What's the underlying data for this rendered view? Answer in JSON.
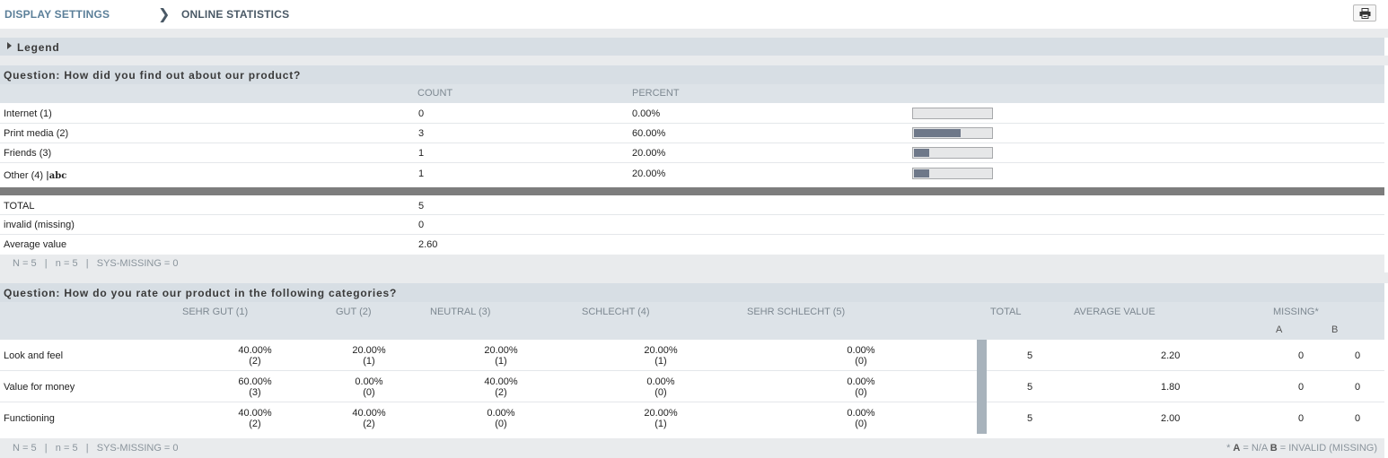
{
  "breadcrumb": {
    "display_settings": "DISPLAY SETTINGS",
    "separator": "❯",
    "current": "ONLINE STATISTICS"
  },
  "print_button": {
    "icon": "printer-icon"
  },
  "legend": {
    "label": "Legend",
    "icon": "triangle-right-icon"
  },
  "q1": {
    "title": "Question: How did you find out about our product?",
    "headers": {
      "count": "COUNT",
      "percent": "PERCENT"
    },
    "rows": [
      {
        "label": "Internet (1)",
        "count": "0",
        "percent": "0.00%",
        "fraction": 0.0
      },
      {
        "label": "Print media (2)",
        "count": "3",
        "percent": "60.00%",
        "fraction": 0.6
      },
      {
        "label": "Friends (3)",
        "count": "1",
        "percent": "20.00%",
        "fraction": 0.2
      },
      {
        "label": "Other (4)",
        "count": "1",
        "percent": "20.00%",
        "fraction": 0.2,
        "text_icon": "abc"
      }
    ],
    "summary": [
      {
        "label": "TOTAL",
        "value": "5"
      },
      {
        "label": "invalid (missing)",
        "value": "0"
      },
      {
        "label": "Average value",
        "value": "2.60"
      }
    ],
    "footer": "N = 5   |   n = 5   |   SYS-MISSING = 0"
  },
  "q2": {
    "title": "Question: How do you rate our product in the following categories?",
    "headers": {
      "c1": "SEHR GUT (1)",
      "c2": "GUT (2)",
      "c3": "NEUTRAL (3)",
      "c4": "SCHLECHT (4)",
      "c5": "SEHR SCHLECHT (5)",
      "total": "TOTAL",
      "average": "AVERAGE VALUE",
      "missing": "MISSING*",
      "missing_a": "A",
      "missing_b": "B"
    },
    "rows": [
      {
        "label": "Look and feel",
        "cells": [
          {
            "pct": "40.00%",
            "n": "(2)"
          },
          {
            "pct": "20.00%",
            "n": "(1)"
          },
          {
            "pct": "20.00%",
            "n": "(1)"
          },
          {
            "pct": "20.00%",
            "n": "(1)"
          },
          {
            "pct": "0.00%",
            "n": "(0)"
          }
        ],
        "total": "5",
        "average": "2.20",
        "missing_a": "0",
        "missing_b": "0"
      },
      {
        "label": "Value for money",
        "cells": [
          {
            "pct": "60.00%",
            "n": "(3)"
          },
          {
            "pct": "0.00%",
            "n": "(0)"
          },
          {
            "pct": "40.00%",
            "n": "(2)"
          },
          {
            "pct": "0.00%",
            "n": "(0)"
          },
          {
            "pct": "0.00%",
            "n": "(0)"
          }
        ],
        "total": "5",
        "average": "1.80",
        "missing_a": "0",
        "missing_b": "0"
      },
      {
        "label": "Functioning",
        "cells": [
          {
            "pct": "40.00%",
            "n": "(2)"
          },
          {
            "pct": "40.00%",
            "n": "(2)"
          },
          {
            "pct": "0.00%",
            "n": "(0)"
          },
          {
            "pct": "20.00%",
            "n": "(1)"
          },
          {
            "pct": "0.00%",
            "n": "(0)"
          }
        ],
        "total": "5",
        "average": "2.00",
        "missing_a": "0",
        "missing_b": "0"
      }
    ],
    "footer": "N = 5   |   n = 5   |   SYS-MISSING = 0",
    "footnote_prefix": "* ",
    "footnote_a": "A",
    "footnote_mid": " = N/A ",
    "footnote_b": "B",
    "footnote_suffix": " = INVALID (MISSING)"
  },
  "colors": {
    "bar_fill": "#6e7889",
    "bar_track": "#e6e7e8",
    "header_bg": "#d7dee4",
    "link": "#5b7f99"
  }
}
